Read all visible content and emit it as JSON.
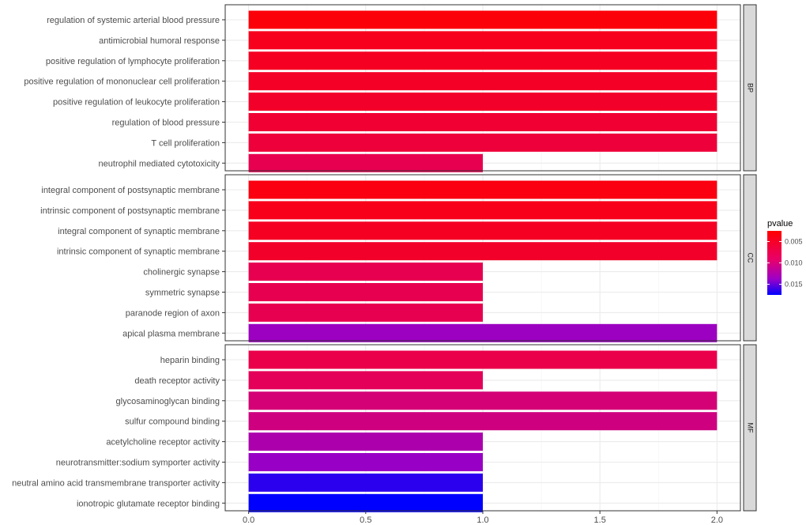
{
  "chart_data": {
    "type": "bar",
    "orientation": "horizontal",
    "xlim": [
      -0.1,
      2.1
    ],
    "x_ticks": [
      0.0,
      0.5,
      1.0,
      1.5,
      2.0
    ],
    "x_tick_labels": [
      "0.0",
      "0.5",
      "1.0",
      "1.5",
      "2.0"
    ],
    "legend": {
      "title": "pvalue",
      "ticks": [
        0.005,
        0.01,
        0.015
      ],
      "tick_labels": [
        "0.005",
        "0.010",
        "0.015"
      ],
      "range": [
        0.0025,
        0.0175
      ],
      "color_low": "#ff0000",
      "color_high": "#0000ff",
      "placement": "right"
    },
    "panels": [
      {
        "name": "BP",
        "categories": [
          "regulation of systemic arterial blood pressure",
          "antimicrobial humoral response",
          "positive regulation of lymphocyte proliferation",
          "positive regulation of mononuclear cell proliferation",
          "positive regulation of leukocyte proliferation",
          "regulation of blood pressure",
          "T cell proliferation",
          "neutrophil mediated cytotoxicity"
        ],
        "values": [
          2,
          2,
          2,
          2,
          2,
          2,
          2,
          1
        ],
        "pvalues": [
          0.0028,
          0.0034,
          0.0036,
          0.0037,
          0.0038,
          0.0041,
          0.0043,
          0.005
        ]
      },
      {
        "name": "CC",
        "categories": [
          "integral component of postsynaptic membrane",
          "intrinsic component of postsynaptic membrane",
          "integral component of synaptic membrane",
          "intrinsic component of synaptic membrane",
          "cholinergic synapse",
          "symmetric synapse",
          "paranode region of axon",
          "apical plasma membrane"
        ],
        "values": [
          2,
          2,
          2,
          2,
          1,
          1,
          1,
          2
        ],
        "pvalues": [
          0.003,
          0.0033,
          0.0036,
          0.0038,
          0.005,
          0.005,
          0.005,
          0.0125
        ]
      },
      {
        "name": "MF",
        "categories": [
          "heparin binding",
          "death receptor activity",
          "glycosaminoglycan binding",
          "sulfur compound binding",
          "acetylcholine receptor activity",
          "neurotransmitter:sodium symporter activity",
          "neutral amino acid transmembrane transporter activity",
          "ionotropic glutamate receptor binding"
        ],
        "values": [
          2,
          1,
          2,
          2,
          1,
          1,
          1,
          1
        ],
        "pvalues": [
          0.0048,
          0.0055,
          0.0075,
          0.0082,
          0.0112,
          0.0128,
          0.0162,
          0.0175
        ]
      }
    ]
  }
}
